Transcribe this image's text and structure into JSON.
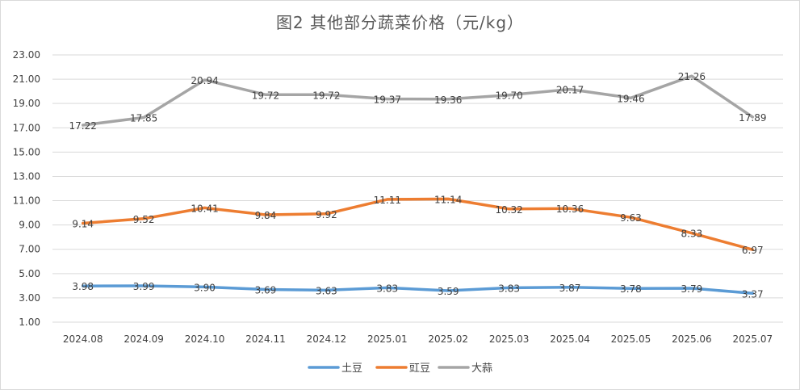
{
  "chart_data": {
    "type": "line",
    "title": "图2  其他部分蔬菜价格（元/kg）",
    "categories": [
      "2024.08",
      "2024.09",
      "2024.10",
      "2024.11",
      "2024.12",
      "2025.01",
      "2025.02",
      "2025.03",
      "2025.04",
      "2025.05",
      "2025.06",
      "2025.07"
    ],
    "ylim": [
      1,
      23
    ],
    "yticks": [
      "1.00",
      "3.00",
      "5.00",
      "7.00",
      "9.00",
      "11.00",
      "13.00",
      "15.00",
      "17.00",
      "19.00",
      "21.00",
      "23.00"
    ],
    "grid": true,
    "legend_position": "bottom",
    "series": [
      {
        "name": "土豆",
        "color": "#5b9bd5",
        "values": [
          3.98,
          3.99,
          3.9,
          3.69,
          3.63,
          3.83,
          3.59,
          3.83,
          3.87,
          3.78,
          3.79,
          3.37
        ],
        "labels": [
          "3.98",
          "3.99",
          "3.90",
          "3.69",
          "3.63",
          "3.83",
          "3.59",
          "3.83",
          "3.87",
          "3.78",
          "3.79",
          "3.37"
        ]
      },
      {
        "name": "豇豆",
        "color": "#ed7d31",
        "values": [
          9.14,
          9.52,
          10.41,
          9.84,
          9.92,
          11.11,
          11.14,
          10.32,
          10.36,
          9.63,
          8.33,
          6.97
        ],
        "labels": [
          "9.14",
          "9.52",
          "10.41",
          "9.84",
          "9.92",
          "11.11",
          "11.14",
          "10.32",
          "10.36",
          "9.63",
          "8.33",
          "6.97"
        ]
      },
      {
        "name": "大蒜",
        "color": "#a5a5a5",
        "values": [
          17.22,
          17.85,
          20.94,
          19.72,
          19.72,
          19.37,
          19.36,
          19.7,
          20.17,
          19.46,
          21.26,
          17.89
        ],
        "labels": [
          "17.22",
          "17.85",
          "20.94",
          "19.72",
          "19.72",
          "19.37",
          "19.36",
          "19.70",
          "20.17",
          "19.46",
          "21.26",
          "17.89"
        ]
      }
    ]
  }
}
